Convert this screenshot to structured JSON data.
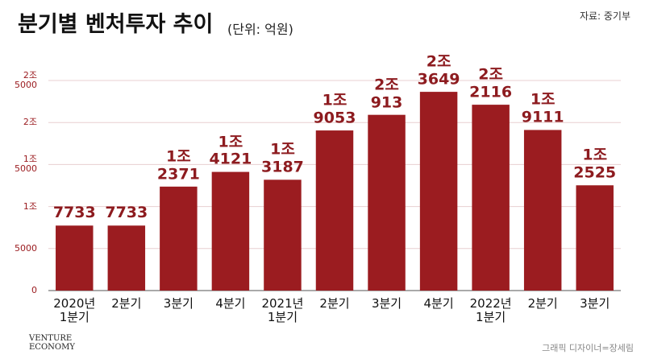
{
  "title": "분기별 벤처투자 추이",
  "subtitle": "(단위: 억원)",
  "source": "자료: 중기부",
  "credit": "그래픽 디자이너=장세림",
  "logo": "VENTURE\nECONOMY",
  "chart_data": {
    "type": "bar",
    "categories": [
      "2020년\n1분기",
      "2분기",
      "3분기",
      "4분기",
      "2021년\n1분기",
      "2분기",
      "3분기",
      "4분기",
      "2022년\n1분기",
      "2분기",
      "3분기"
    ],
    "values": [
      7733,
      7733,
      12371,
      14121,
      13187,
      19053,
      20913,
      23649,
      22116,
      19111,
      12525
    ],
    "value_labels": [
      "7733",
      "7733",
      "1조\n2371",
      "1조\n4121",
      "1조\n3187",
      "1조\n9053",
      "2조\n913",
      "2조\n3649",
      "2조\n2116",
      "1조\n9111",
      "1조\n2525"
    ],
    "color": "#9b1c20",
    "ylim": [
      0,
      25000
    ],
    "yticks": [
      0,
      5000,
      {
        "value": 10000,
        "label": "1조"
      },
      {
        "value": 15000,
        "label": "1조\n5000"
      },
      {
        "value": 20000,
        "label": "2조"
      },
      {
        "value": 25000,
        "label": "2조\n5000"
      }
    ],
    "grid": true
  }
}
